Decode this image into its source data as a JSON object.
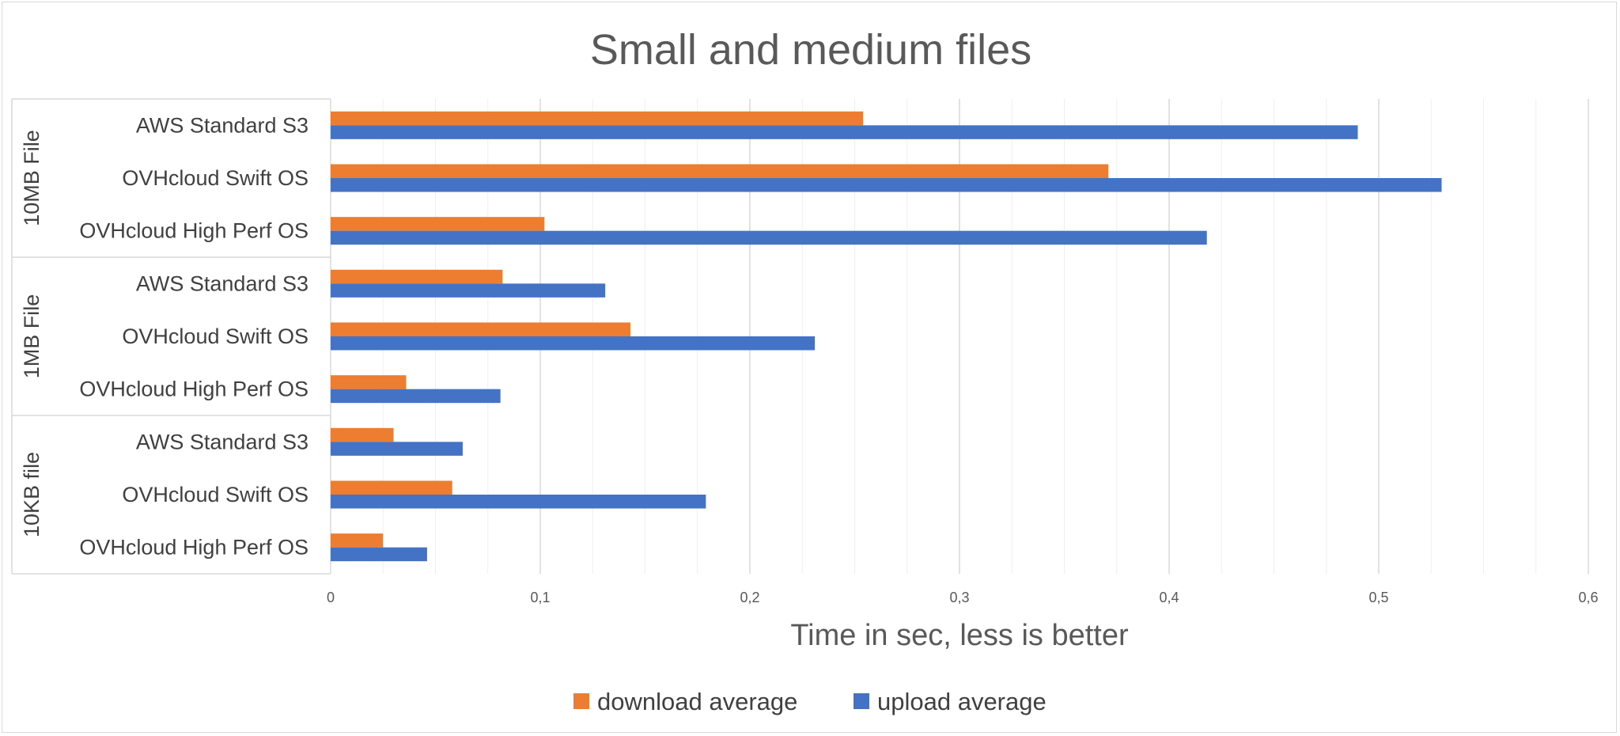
{
  "chart_data": {
    "type": "bar",
    "orientation": "horizontal",
    "title": "Small and medium files",
    "xlabel": "Time in sec, less is better",
    "ylabel": "",
    "xlim": [
      0,
      0.6
    ],
    "xticks": [
      "0",
      "0,1",
      "0,2",
      "0,3",
      "0,4",
      "0,5",
      "0,6"
    ],
    "xtick_values": [
      0,
      0.1,
      0.2,
      0.3,
      0.4,
      0.5,
      0.6
    ],
    "grid": true,
    "legend_position": "bottom",
    "groups": [
      {
        "label": "10MB File",
        "categories": [
          "AWS Standard S3",
          "OVHcloud Swift OS",
          "OVHcloud High Perf OS"
        ]
      },
      {
        "label": "1MB File",
        "categories": [
          "AWS Standard S3",
          "OVHcloud Swift OS",
          "OVHcloud High Perf OS"
        ]
      },
      {
        "label": "10KB file",
        "categories": [
          "AWS Standard S3",
          "OVHcloud Swift OS",
          "OVHcloud High Perf OS"
        ]
      }
    ],
    "series": [
      {
        "name": "download average",
        "color": "#ED7D31",
        "values": [
          0.254,
          0.371,
          0.102,
          0.082,
          0.143,
          0.036,
          0.03,
          0.058,
          0.025
        ]
      },
      {
        "name": "upload average",
        "color": "#4472C4",
        "values": [
          0.49,
          0.53,
          0.418,
          0.131,
          0.231,
          0.081,
          0.063,
          0.179,
          0.046
        ]
      }
    ]
  }
}
